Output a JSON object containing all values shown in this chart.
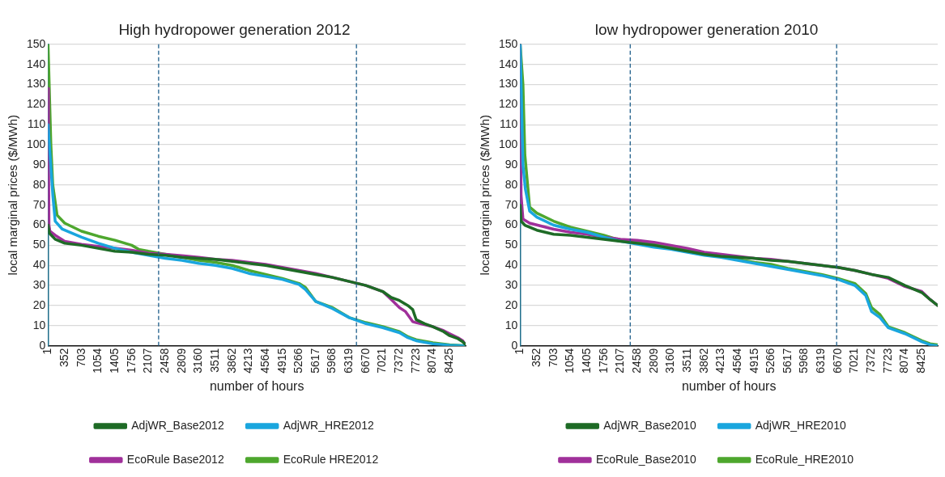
{
  "chart_data": [
    {
      "type": "line",
      "title": "High hydropower generation 2012",
      "xlabel": "number of hours",
      "ylabel": "local marginal prices ($/MWh)",
      "xlim": [
        1,
        8760
      ],
      "xticks": [
        1,
        352,
        703,
        1054,
        1405,
        1756,
        2107,
        2458,
        2809,
        3160,
        3511,
        3862,
        4213,
        4564,
        4915,
        5266,
        5617,
        5968,
        6319,
        6670,
        7021,
        7372,
        7723,
        8074,
        8425
      ],
      "ylim": [
        0,
        150
      ],
      "yticks": [
        0,
        10,
        20,
        30,
        40,
        50,
        60,
        70,
        80,
        90,
        100,
        110,
        120,
        130,
        140,
        150
      ],
      "grid": "y",
      "legend": "bottom",
      "line_style": "solid",
      "ref_lines": [
        {
          "axis": "x",
          "value": 2320,
          "color": "#1f5f8b",
          "line_style": "dashed"
        },
        {
          "axis": "x",
          "value": 6470,
          "color": "#1f5f8b",
          "line_style": "dashed"
        }
      ],
      "series": [
        {
          "name": "AdjWR_Base2012",
          "color": "#1e6b26",
          "x": [
            1,
            30,
            150,
            350,
            700,
            1050,
            1400,
            1756,
            2107,
            2458,
            2809,
            3160,
            3511,
            3862,
            4213,
            4564,
            4915,
            5266,
            5617,
            5968,
            6319,
            6670,
            7021,
            7200,
            7372,
            7550,
            7650,
            7723,
            7900,
            8074,
            8300,
            8425,
            8600,
            8700,
            8760
          ],
          "values": [
            60,
            56,
            53,
            51,
            50,
            48.5,
            47,
            46.5,
            45.5,
            45,
            44,
            43.5,
            43,
            42,
            41,
            40,
            38.5,
            37,
            35.5,
            34,
            32,
            30,
            27,
            24,
            22.5,
            20,
            18,
            13,
            11,
            9.5,
            7,
            5,
            3.5,
            2,
            0.5
          ]
        },
        {
          "name": "AdjWR_HRE2012",
          "color": "#1aa6de",
          "x": [
            1,
            100,
            150,
            300,
            703,
            1054,
            1405,
            1756,
            2107,
            2458,
            2809,
            3160,
            3511,
            3862,
            4213,
            4564,
            4915,
            5266,
            5400,
            5617,
            5968,
            6319,
            6670,
            7021,
            7372,
            7550,
            7723,
            8074,
            8425,
            8760
          ],
          "values": [
            110,
            75,
            62,
            58,
            54,
            51,
            48.5,
            46.5,
            45,
            43.5,
            42.5,
            41,
            40,
            38.5,
            36,
            34.5,
            33,
            30.5,
            28,
            22,
            18.5,
            14,
            11,
            9,
            6.5,
            4,
            2.5,
            1,
            0.3,
            0
          ]
        },
        {
          "name": "EcoRule Base2012",
          "color": "#a0309a",
          "x": [
            1,
            10,
            20,
            40,
            150,
            350,
            703,
            1054,
            1405,
            1756,
            2107,
            2458,
            2809,
            3160,
            3511,
            3862,
            4213,
            4564,
            4915,
            5266,
            5617,
            5968,
            6319,
            6670,
            7021,
            7200,
            7372,
            7500,
            7650,
            7723,
            8074,
            8300,
            8425,
            8600,
            8700,
            8760
          ],
          "values": [
            128,
            95,
            60,
            57,
            55,
            52,
            50.5,
            49.5,
            48.5,
            47.5,
            46,
            45.5,
            44.8,
            44,
            43,
            42.5,
            41.5,
            40.5,
            39,
            37.5,
            36,
            34,
            32,
            30,
            27,
            23,
            19,
            17,
            12,
            11.5,
            9.5,
            7.5,
            6,
            4,
            2.5,
            0.5
          ]
        },
        {
          "name": "EcoRule HRE2012",
          "color": "#4ea72e",
          "x": [
            1,
            60,
            100,
            190,
            350,
            703,
            1054,
            1405,
            1756,
            1900,
            2107,
            2458,
            2809,
            3160,
            3511,
            3862,
            4213,
            4564,
            4915,
            5266,
            5400,
            5617,
            5968,
            6319,
            6670,
            7021,
            7372,
            7550,
            7723,
            8074,
            8425,
            8760
          ],
          "values": [
            150,
            100,
            80,
            65,
            61,
            57,
            54.5,
            52.5,
            50,
            48,
            47,
            45.5,
            44,
            42.5,
            41.5,
            40,
            37.5,
            35.5,
            33.5,
            31,
            29,
            22,
            19,
            14,
            11.5,
            9.5,
            7,
            4.5,
            3,
            1.5,
            0.5,
            0
          ]
        }
      ]
    },
    {
      "type": "line",
      "title": "low hydropower generation 2010",
      "xlabel": "number of hours",
      "ylabel": "local marginal prices ($/MWh)",
      "xlim": [
        1,
        8760
      ],
      "xticks": [
        1,
        352,
        703,
        1054,
        1405,
        1756,
        2107,
        2458,
        2809,
        3160,
        3511,
        3862,
        4213,
        4564,
        4915,
        5266,
        5617,
        5968,
        6319,
        6670,
        7021,
        7372,
        7723,
        8074,
        8425
      ],
      "ylim": [
        0,
        150
      ],
      "yticks": [
        0,
        10,
        20,
        30,
        40,
        50,
        60,
        70,
        80,
        90,
        100,
        110,
        120,
        130,
        140,
        150
      ],
      "grid": "y",
      "legend": "bottom",
      "line_style": "solid",
      "ref_lines": [
        {
          "axis": "x",
          "value": 2310,
          "color": "#1f5f8b",
          "line_style": "dashed"
        },
        {
          "axis": "x",
          "value": 6640,
          "color": "#1f5f8b",
          "line_style": "dashed"
        }
      ],
      "series": [
        {
          "name": "AdjWR_Base2010",
          "color": "#1e6b26",
          "x": [
            1,
            20,
            100,
            350,
            703,
            1054,
            1405,
            1756,
            2107,
            2458,
            2809,
            3160,
            3511,
            3862,
            4213,
            4564,
            4915,
            5266,
            5617,
            5968,
            6319,
            6670,
            7021,
            7372,
            7723,
            8074,
            8425,
            8600,
            8760
          ],
          "values": [
            70,
            62,
            60,
            57.5,
            55.5,
            55,
            54,
            53,
            52,
            51,
            50,
            48.5,
            47,
            45.5,
            44.5,
            44,
            43.5,
            42.5,
            42,
            41,
            40,
            39,
            37.5,
            35.5,
            34,
            30,
            26.5,
            23,
            20
          ]
        },
        {
          "name": "AdjWR_HRE2010",
          "color": "#1aa6de",
          "x": [
            1,
            60,
            110,
            200,
            352,
            703,
            1054,
            1405,
            1756,
            2107,
            2458,
            2809,
            3160,
            3511,
            3862,
            4213,
            4564,
            4915,
            5266,
            5617,
            5968,
            6319,
            6670,
            7021,
            7250,
            7372,
            7550,
            7723,
            8074,
            8425,
            8600,
            8760
          ],
          "values": [
            150,
            90,
            78,
            67,
            64,
            60,
            58,
            56.5,
            54,
            52,
            50.5,
            49,
            48,
            46.5,
            45,
            44,
            42.5,
            41,
            39.5,
            38,
            36.5,
            35,
            33,
            30,
            25,
            17,
            14,
            9,
            6,
            2,
            0.5,
            0
          ]
        },
        {
          "name": "EcoRule_Base2010",
          "color": "#a0309a",
          "x": [
            1,
            20,
            60,
            200,
            703,
            1054,
            1405,
            1756,
            2107,
            2458,
            2809,
            3160,
            3511,
            3862,
            4213,
            4564,
            4915,
            5266,
            5617,
            5968,
            6319,
            6670,
            7021,
            7372,
            7723,
            8074,
            8425,
            8600,
            8760
          ],
          "values": [
            150,
            75,
            63,
            61,
            58,
            56.5,
            55.5,
            54,
            53,
            52.5,
            51.5,
            50,
            48.5,
            46.5,
            45.5,
            44.5,
            43.5,
            43,
            42,
            41,
            40,
            39,
            37.5,
            35.5,
            33.5,
            29.5,
            27,
            23,
            20
          ]
        },
        {
          "name": "EcoRule_HRE2010",
          "color": "#4ea72e",
          "x": [
            1,
            60,
            100,
            200,
            352,
            703,
            1054,
            1405,
            1756,
            2107,
            2458,
            2809,
            3160,
            3511,
            3862,
            4213,
            4564,
            4915,
            5266,
            5617,
            5968,
            6319,
            6670,
            7021,
            7250,
            7372,
            7550,
            7723,
            8074,
            8425,
            8600,
            8760
          ],
          "values": [
            150,
            130,
            95,
            69,
            66,
            62,
            59,
            57,
            55,
            52.5,
            52,
            50.5,
            49,
            47.5,
            45.5,
            44.5,
            43,
            41.5,
            40.5,
            38.5,
            37,
            35.5,
            33.5,
            31,
            26,
            19,
            15.5,
            9.5,
            6.5,
            2.5,
            1,
            0.5
          ]
        }
      ]
    }
  ]
}
